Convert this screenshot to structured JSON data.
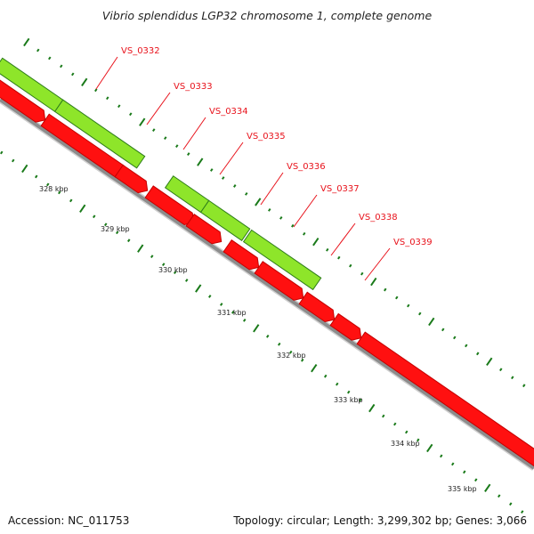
{
  "title": "Vibrio splendidus LGP32 chromosome 1, complete genome",
  "footer": {
    "accession": "Accession: NC_011753",
    "summary": "Topology: circular; Length: 3,299,302 bp; Genes: 3,066"
  },
  "colors": {
    "forward_gene": "#8ee52a",
    "forward_gene_dark": "#2e7d1a",
    "reverse_gene": "#ff1010",
    "label": "#e8121b",
    "tick": "#1a7a1a",
    "backbone": "#8c8c8c"
  },
  "scale_labels": [
    "328 kbp",
    "329 kbp",
    "330 kbp",
    "331 kbp",
    "332 kbp",
    "333 kbp",
    "334 kbp",
    "335 kbp"
  ],
  "genes": [
    {
      "name": "VS_0332",
      "strand": "forward"
    },
    {
      "name": "VS_0333",
      "strand": "reverse"
    },
    {
      "name": "VS_0334",
      "strand": "forward"
    },
    {
      "name": "VS_0335",
      "strand": "reverse"
    },
    {
      "name": "VS_0336",
      "strand": "forward"
    },
    {
      "name": "VS_0337",
      "strand": "reverse"
    },
    {
      "name": "VS_0338",
      "strand": "reverse"
    },
    {
      "name": "VS_0339",
      "strand": "reverse"
    }
  ]
}
